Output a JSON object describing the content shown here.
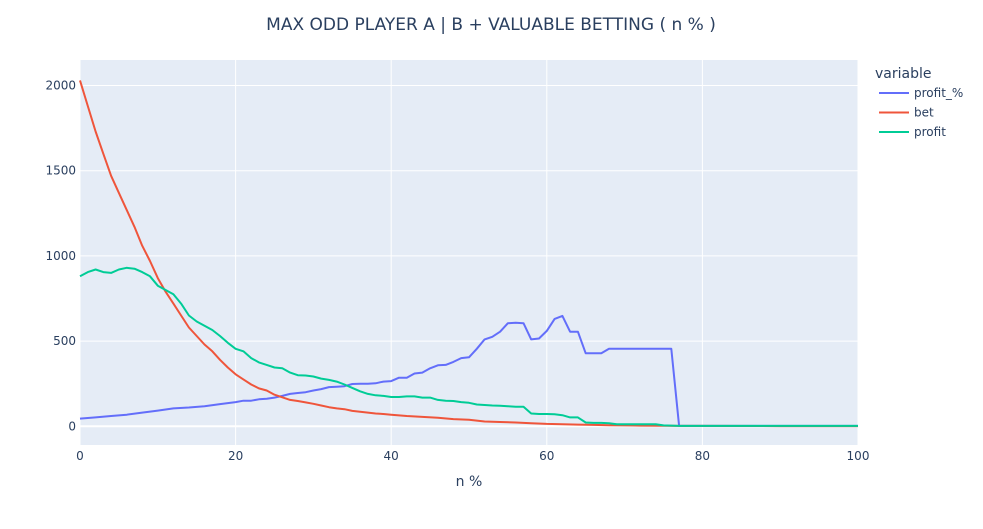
{
  "chart_data": {
    "type": "line",
    "title": "MAX ODD PLAYER A | B + VALUABLE BETTING ( n % )",
    "xlabel": "n %",
    "ylabel": "",
    "xlim": [
      0,
      100
    ],
    "ylim": [
      -110,
      2150
    ],
    "x_ticks": [
      0,
      20,
      40,
      60,
      80,
      100
    ],
    "y_ticks": [
      0,
      500,
      1000,
      1500,
      2000
    ],
    "grid": true,
    "legend": {
      "title": "variable",
      "placement": "right"
    },
    "colors": {
      "plot_bg": "#E5ECF6",
      "grid": "#FFFFFF",
      "text": "#2a3f5f"
    },
    "series": [
      {
        "name": "profit_%",
        "color": "#636EFA",
        "points": [
          [
            0,
            45
          ],
          [
            2,
            52
          ],
          [
            4,
            60
          ],
          [
            6,
            68
          ],
          [
            8,
            80
          ],
          [
            10,
            92
          ],
          [
            12,
            105
          ],
          [
            14,
            110
          ],
          [
            16,
            118
          ],
          [
            18,
            130
          ],
          [
            20,
            142
          ],
          [
            21,
            150
          ],
          [
            22,
            150
          ],
          [
            23,
            158
          ],
          [
            24,
            162
          ],
          [
            25,
            168
          ],
          [
            26,
            178
          ],
          [
            27,
            190
          ],
          [
            28,
            195
          ],
          [
            29,
            200
          ],
          [
            30,
            210
          ],
          [
            31,
            218
          ],
          [
            32,
            230
          ],
          [
            33,
            232
          ],
          [
            34,
            235
          ],
          [
            35,
            248
          ],
          [
            36,
            250
          ],
          [
            37,
            250
          ],
          [
            38,
            252
          ],
          [
            39,
            262
          ],
          [
            40,
            265
          ],
          [
            41,
            285
          ],
          [
            42,
            285
          ],
          [
            43,
            310
          ],
          [
            44,
            315
          ],
          [
            45,
            340
          ],
          [
            46,
            358
          ],
          [
            47,
            360
          ],
          [
            48,
            378
          ],
          [
            49,
            400
          ],
          [
            50,
            405
          ],
          [
            51,
            455
          ],
          [
            52,
            510
          ],
          [
            53,
            525
          ],
          [
            54,
            555
          ],
          [
            55,
            605
          ],
          [
            56,
            608
          ],
          [
            57,
            605
          ],
          [
            58,
            510
          ],
          [
            59,
            515
          ],
          [
            60,
            560
          ],
          [
            61,
            630
          ],
          [
            62,
            648
          ],
          [
            63,
            555
          ],
          [
            64,
            555
          ],
          [
            65,
            428
          ],
          [
            66,
            428
          ],
          [
            67,
            428
          ],
          [
            68,
            455
          ],
          [
            69,
            455
          ],
          [
            70,
            455
          ],
          [
            72,
            455
          ],
          [
            74,
            455
          ],
          [
            75,
            455
          ],
          [
            76,
            455
          ],
          [
            77,
            2
          ],
          [
            80,
            2
          ],
          [
            90,
            2
          ],
          [
            100,
            2
          ]
        ]
      },
      {
        "name": "bet",
        "color": "#EF553B",
        "points": [
          [
            0,
            2030
          ],
          [
            1,
            1880
          ],
          [
            2,
            1730
          ],
          [
            3,
            1600
          ],
          [
            4,
            1470
          ],
          [
            5,
            1370
          ],
          [
            6,
            1270
          ],
          [
            7,
            1170
          ],
          [
            8,
            1060
          ],
          [
            9,
            970
          ],
          [
            10,
            870
          ],
          [
            11,
            790
          ],
          [
            12,
            720
          ],
          [
            13,
            650
          ],
          [
            14,
            580
          ],
          [
            15,
            530
          ],
          [
            16,
            480
          ],
          [
            17,
            440
          ],
          [
            18,
            390
          ],
          [
            19,
            345
          ],
          [
            20,
            305
          ],
          [
            21,
            275
          ],
          [
            22,
            245
          ],
          [
            23,
            222
          ],
          [
            24,
            210
          ],
          [
            25,
            185
          ],
          [
            26,
            170
          ],
          [
            27,
            155
          ],
          [
            28,
            148
          ],
          [
            29,
            140
          ],
          [
            30,
            132
          ],
          [
            31,
            122
          ],
          [
            32,
            112
          ],
          [
            33,
            105
          ],
          [
            34,
            100
          ],
          [
            35,
            90
          ],
          [
            36,
            85
          ],
          [
            37,
            80
          ],
          [
            38,
            75
          ],
          [
            39,
            72
          ],
          [
            40,
            68
          ],
          [
            42,
            60
          ],
          [
            44,
            55
          ],
          [
            46,
            50
          ],
          [
            48,
            42
          ],
          [
            50,
            38
          ],
          [
            52,
            28
          ],
          [
            54,
            25
          ],
          [
            56,
            22
          ],
          [
            58,
            18
          ],
          [
            60,
            14
          ],
          [
            62,
            12
          ],
          [
            64,
            10
          ],
          [
            66,
            8
          ],
          [
            68,
            6
          ],
          [
            70,
            5
          ],
          [
            72,
            4
          ],
          [
            75,
            3
          ],
          [
            77,
            2
          ],
          [
            80,
            2
          ],
          [
            90,
            1
          ],
          [
            100,
            1
          ]
        ]
      },
      {
        "name": "profit",
        "color": "#00CC96",
        "points": [
          [
            0,
            880
          ],
          [
            1,
            905
          ],
          [
            2,
            920
          ],
          [
            3,
            905
          ],
          [
            4,
            900
          ],
          [
            5,
            920
          ],
          [
            6,
            930
          ],
          [
            7,
            925
          ],
          [
            8,
            905
          ],
          [
            9,
            880
          ],
          [
            10,
            825
          ],
          [
            11,
            800
          ],
          [
            12,
            775
          ],
          [
            13,
            720
          ],
          [
            14,
            650
          ],
          [
            15,
            615
          ],
          [
            16,
            590
          ],
          [
            17,
            565
          ],
          [
            18,
            530
          ],
          [
            19,
            490
          ],
          [
            20,
            455
          ],
          [
            21,
            440
          ],
          [
            22,
            400
          ],
          [
            23,
            375
          ],
          [
            24,
            360
          ],
          [
            25,
            345
          ],
          [
            26,
            340
          ],
          [
            27,
            315
          ],
          [
            28,
            300
          ],
          [
            29,
            298
          ],
          [
            30,
            292
          ],
          [
            31,
            280
          ],
          [
            32,
            272
          ],
          [
            33,
            262
          ],
          [
            34,
            245
          ],
          [
            35,
            225
          ],
          [
            36,
            205
          ],
          [
            37,
            190
          ],
          [
            38,
            182
          ],
          [
            39,
            178
          ],
          [
            40,
            172
          ],
          [
            41,
            172
          ],
          [
            42,
            175
          ],
          [
            43,
            175
          ],
          [
            44,
            168
          ],
          [
            45,
            168
          ],
          [
            46,
            155
          ],
          [
            47,
            150
          ],
          [
            48,
            148
          ],
          [
            49,
            142
          ],
          [
            50,
            138
          ],
          [
            51,
            128
          ],
          [
            52,
            125
          ],
          [
            53,
            122
          ],
          [
            54,
            120
          ],
          [
            55,
            118
          ],
          [
            56,
            115
          ],
          [
            57,
            115
          ],
          [
            58,
            75
          ],
          [
            59,
            72
          ],
          [
            60,
            72
          ],
          [
            61,
            70
          ],
          [
            62,
            65
          ],
          [
            63,
            52
          ],
          [
            64,
            52
          ],
          [
            65,
            22
          ],
          [
            66,
            20
          ],
          [
            67,
            20
          ],
          [
            68,
            18
          ],
          [
            69,
            12
          ],
          [
            70,
            12
          ],
          [
            72,
            12
          ],
          [
            74,
            12
          ],
          [
            75,
            5
          ],
          [
            77,
            2
          ],
          [
            80,
            2
          ],
          [
            90,
            2
          ],
          [
            100,
            2
          ]
        ]
      }
    ]
  }
}
